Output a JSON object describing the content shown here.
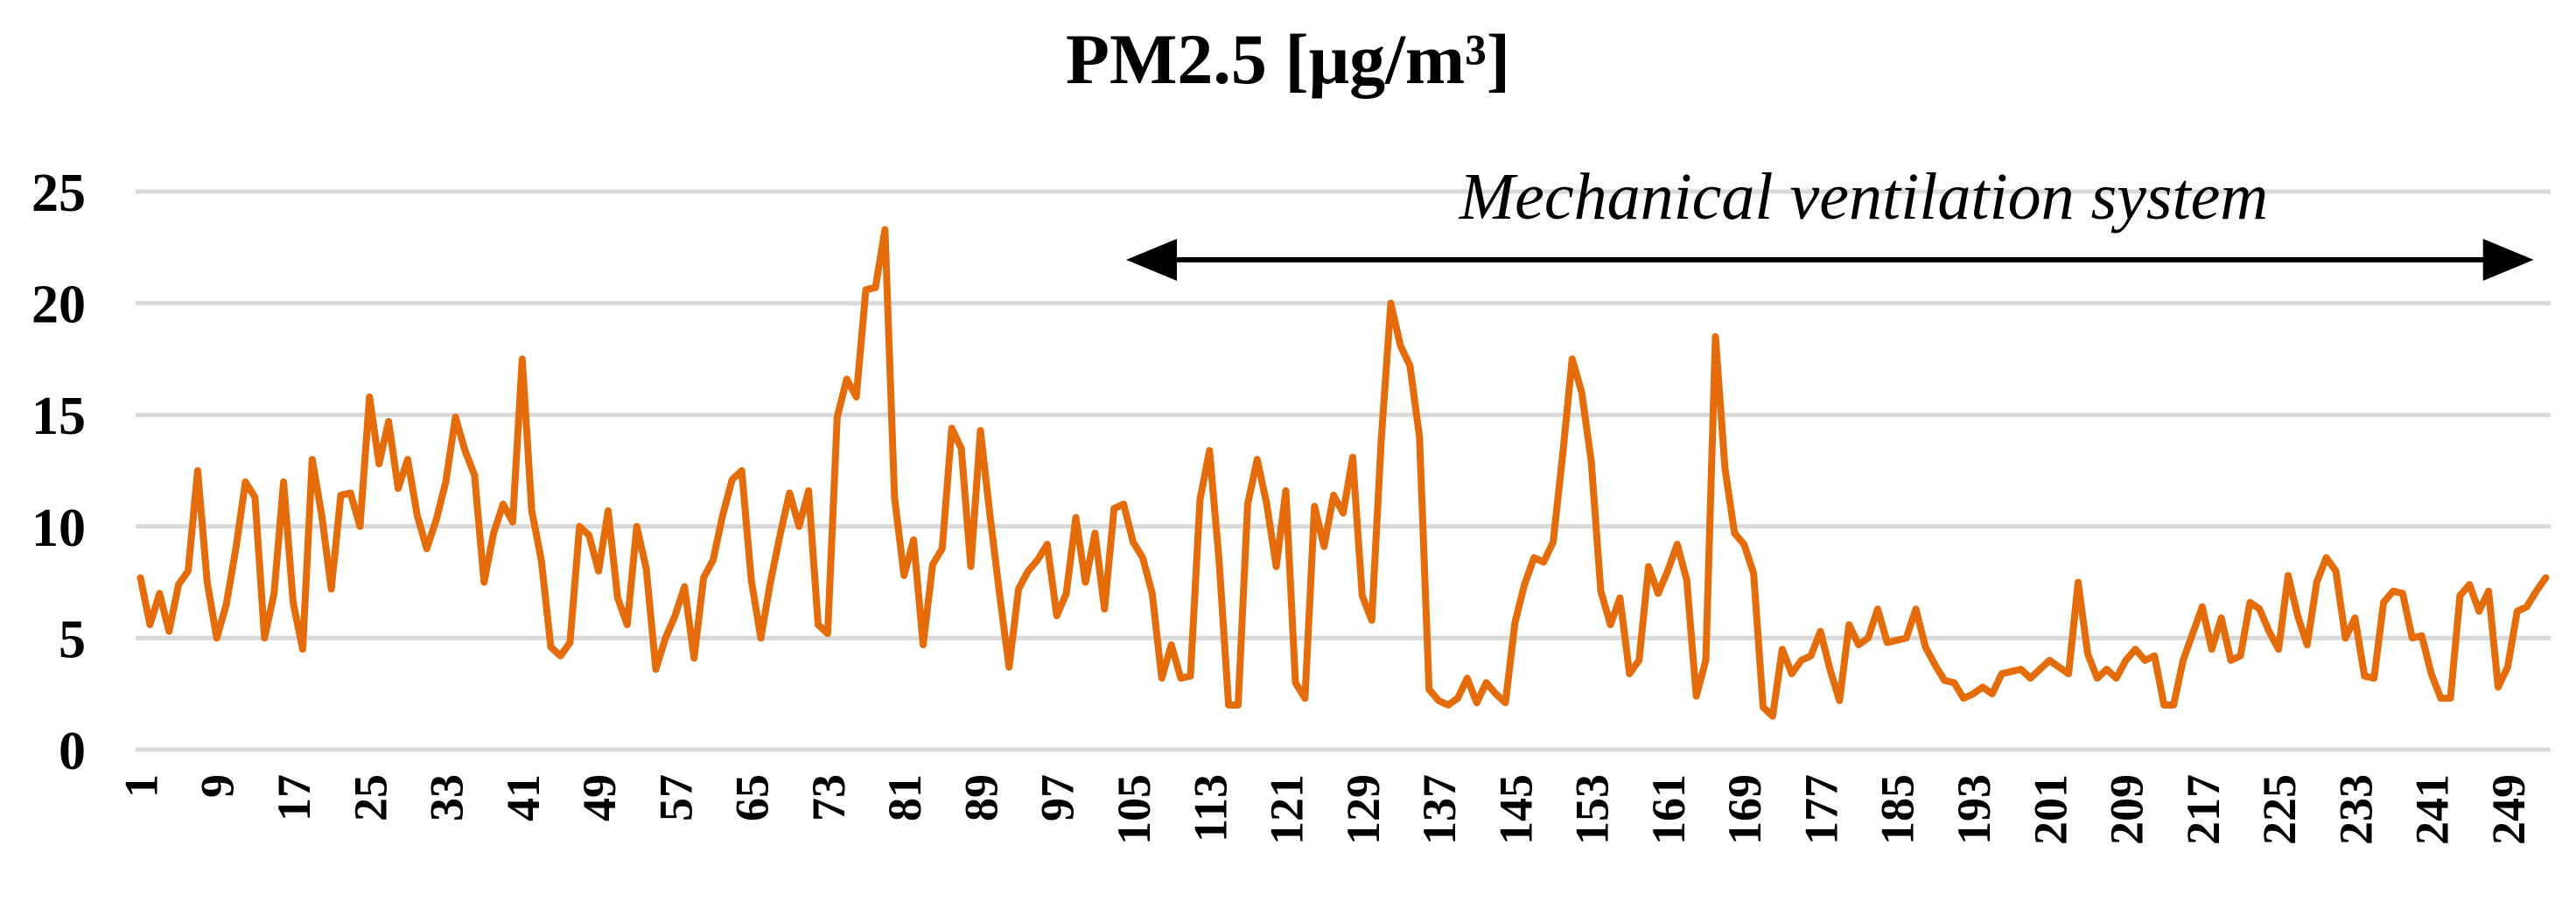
{
  "chart_data": {
    "type": "line",
    "title": "PM2.5 [μg/m³]",
    "xlabel": "",
    "ylabel": "",
    "ylim": [
      0,
      25
    ],
    "yticks": [
      0,
      5,
      10,
      15,
      20,
      25
    ],
    "xticks": [
      1,
      9,
      17,
      25,
      33,
      41,
      49,
      57,
      65,
      73,
      81,
      89,
      97,
      105,
      113,
      121,
      129,
      137,
      145,
      153,
      161,
      169,
      177,
      185,
      193,
      201,
      209,
      217,
      225,
      233,
      241,
      249
    ],
    "grid": true,
    "legend": "none",
    "annotation": {
      "text": "Mechanical ventilation system",
      "x_start": 105,
      "x_end": 251
    },
    "series": [
      {
        "color": "#e46c0a",
        "values": [
          7.7,
          5.6,
          7.0,
          5.3,
          7.4,
          8.0,
          12.5,
          7.5,
          5.0,
          6.5,
          9.0,
          12.0,
          11.3,
          5.0,
          7.0,
          12.0,
          6.6,
          4.5,
          13.0,
          10.5,
          7.2,
          11.4,
          11.5,
          10.0,
          15.8,
          12.8,
          14.7,
          11.7,
          13.0,
          10.5,
          9.0,
          10.3,
          12.0,
          14.9,
          13.4,
          12.3,
          7.5,
          9.7,
          11.0,
          10.2,
          17.5,
          10.7,
          8.5,
          4.6,
          4.2,
          4.8,
          10.0,
          9.6,
          8.0,
          10.7,
          6.8,
          5.6,
          10.0,
          8.1,
          3.6,
          5.0,
          6.0,
          7.3,
          4.1,
          7.7,
          8.5,
          10.5,
          12.1,
          12.5,
          7.6,
          5.0,
          7.5,
          9.6,
          11.5,
          10.0,
          11.6,
          5.6,
          5.2,
          14.9,
          16.6,
          15.8,
          20.6,
          20.7,
          23.3,
          11.3,
          7.8,
          9.4,
          4.7,
          8.3,
          9.0,
          14.4,
          13.5,
          8.2,
          14.3,
          10.5,
          7.0,
          3.7,
          7.2,
          8.0,
          8.5,
          9.2,
          6.0,
          7.0,
          10.4,
          7.5,
          9.7,
          6.3,
          10.8,
          11.0,
          9.3,
          8.6,
          7.0,
          3.2,
          4.7,
          3.2,
          3.3,
          11.2,
          13.4,
          8.5,
          2.0,
          2.0,
          11.0,
          13.0,
          11.0,
          8.2,
          11.6,
          3.0,
          2.3,
          10.9,
          9.1,
          11.4,
          10.6,
          13.1,
          6.9,
          5.8,
          13.9,
          20.0,
          18.1,
          17.2,
          14.0,
          2.7,
          2.2,
          2.0,
          2.3,
          3.2,
          2.1,
          3.0,
          2.5,
          2.1,
          5.7,
          7.4,
          8.6,
          8.4,
          9.3,
          13.2,
          17.5,
          16.0,
          12.9,
          7.1,
          5.6,
          6.8,
          3.4,
          4.0,
          8.2,
          7.0,
          8.0,
          9.2,
          7.6,
          2.4,
          4.0,
          18.5,
          12.6,
          9.7,
          9.2,
          7.9,
          1.9,
          1.5,
          4.5,
          3.4,
          4.0,
          4.2,
          5.3,
          3.6,
          2.2,
          5.6,
          4.7,
          5.0,
          6.3,
          4.8,
          4.9,
          5.0,
          6.3,
          4.6,
          3.8,
          3.1,
          3.0,
          2.3,
          2.5,
          2.8,
          2.5,
          3.4,
          3.5,
          3.6,
          3.2,
          3.6,
          4.0,
          3.7,
          3.4,
          7.5,
          4.3,
          3.2,
          3.6,
          3.2,
          4.0,
          4.5,
          4.0,
          4.2,
          2.0,
          2.0,
          4.0,
          5.2,
          6.4,
          4.5,
          5.9,
          4.0,
          4.2,
          6.6,
          6.3,
          5.3,
          4.5,
          7.8,
          6.0,
          4.7,
          7.5,
          8.6,
          8.0,
          5.0,
          5.9,
          3.3,
          3.2,
          6.6,
          7.1,
          7.0,
          5.0,
          5.1,
          3.4,
          2.3,
          2.3,
          6.9,
          7.4,
          6.2,
          7.1,
          2.8,
          3.7,
          6.2,
          6.4,
          7.1,
          7.7
        ]
      }
    ]
  }
}
